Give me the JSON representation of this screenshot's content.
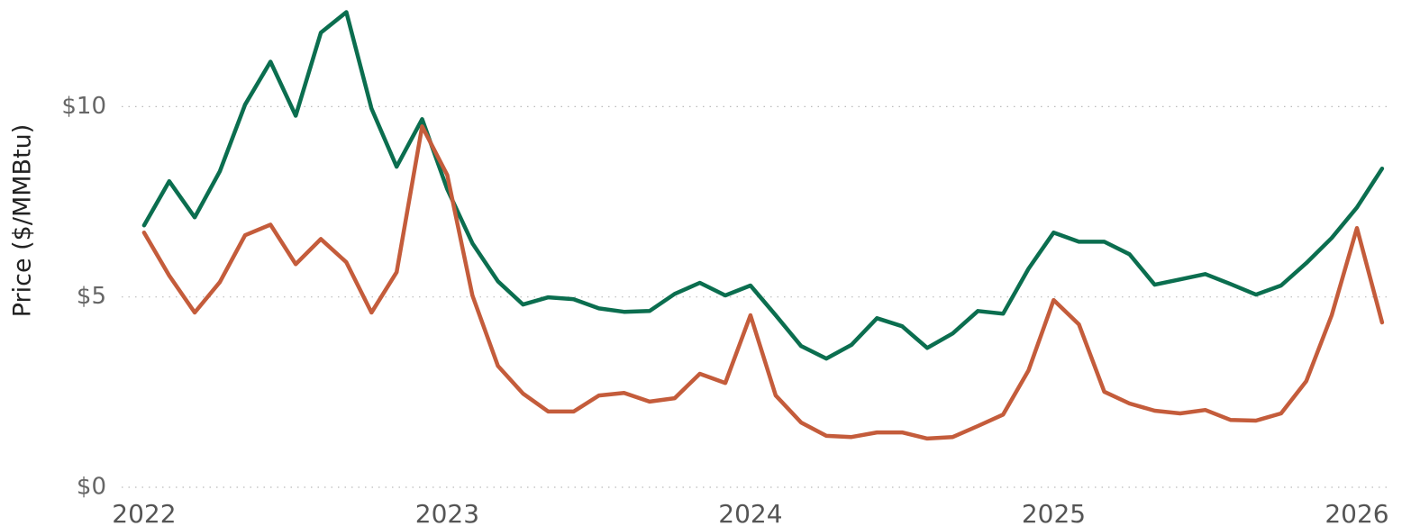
{
  "chart_data": {
    "type": "line",
    "y_label": "Price ($/MMBtu)",
    "x": [
      2022,
      2022.083,
      2022.167,
      2022.25,
      2022.333,
      2022.417,
      2022.5,
      2022.583,
      2022.667,
      2022.75,
      2022.833,
      2022.917,
      2023,
      2023.083,
      2023.167,
      2023.25,
      2023.333,
      2023.417,
      2023.5,
      2023.583,
      2023.667,
      2023.75,
      2023.833,
      2023.917,
      2024,
      2024.083,
      2024.167,
      2024.25,
      2024.333,
      2024.417,
      2024.5,
      2024.583,
      2024.667,
      2024.75,
      2024.833,
      2024.917,
      2025,
      2025.083,
      2025.167,
      2025.25,
      2025.333,
      2025.417,
      2025.5,
      2025.583,
      2025.667,
      2025.75,
      2025.833,
      2025.917,
      2026,
      2026.083
    ],
    "series": [
      {
        "color": "#0b6e4f",
        "values": [
          6.88,
          8.04,
          7.09,
          8.3,
          10.05,
          11.18,
          9.76,
          11.94,
          12.48,
          9.95,
          8.42,
          9.67,
          7.83,
          6.41,
          5.41,
          4.8,
          4.99,
          4.94,
          4.7,
          4.61,
          4.63,
          5.08,
          5.37,
          5.04,
          5.3,
          4.52,
          3.71,
          3.38,
          3.74,
          4.44,
          4.23,
          3.66,
          4.04,
          4.63,
          4.56,
          5.74,
          6.69,
          6.45,
          6.45,
          6.12,
          5.32,
          5.46,
          5.6,
          5.34,
          5.06,
          5.3,
          5.89,
          6.55,
          7.35,
          8.37
        ]
      },
      {
        "color": "#c45c3b",
        "values": [
          6.69,
          5.56,
          4.59,
          5.39,
          6.62,
          6.9,
          5.86,
          6.52,
          5.91,
          4.59,
          5.65,
          9.48,
          8.2,
          5.04,
          3.19,
          2.46,
          1.99,
          1.99,
          2.41,
          2.48,
          2.25,
          2.34,
          2.98,
          2.74,
          4.52,
          2.41,
          1.7,
          1.35,
          1.32,
          1.44,
          1.44,
          1.28,
          1.32,
          1.61,
          1.91,
          3.07,
          4.92,
          4.28,
          2.51,
          2.2,
          2.01,
          1.94,
          2.03,
          1.77,
          1.75,
          1.94,
          2.79,
          4.52,
          6.81,
          4.33
        ]
      }
    ],
    "xlim": [
      2021.926,
      2026.116
    ],
    "xticks": [
      2022,
      2023,
      2024,
      2025,
      2026
    ],
    "ylim": [
      0,
      12.8
    ],
    "yticks": [
      {
        "value": 0,
        "label": "$0"
      },
      {
        "value": 5,
        "label": "$5"
      },
      {
        "value": 10,
        "label": "$10"
      }
    ],
    "grid": true
  }
}
